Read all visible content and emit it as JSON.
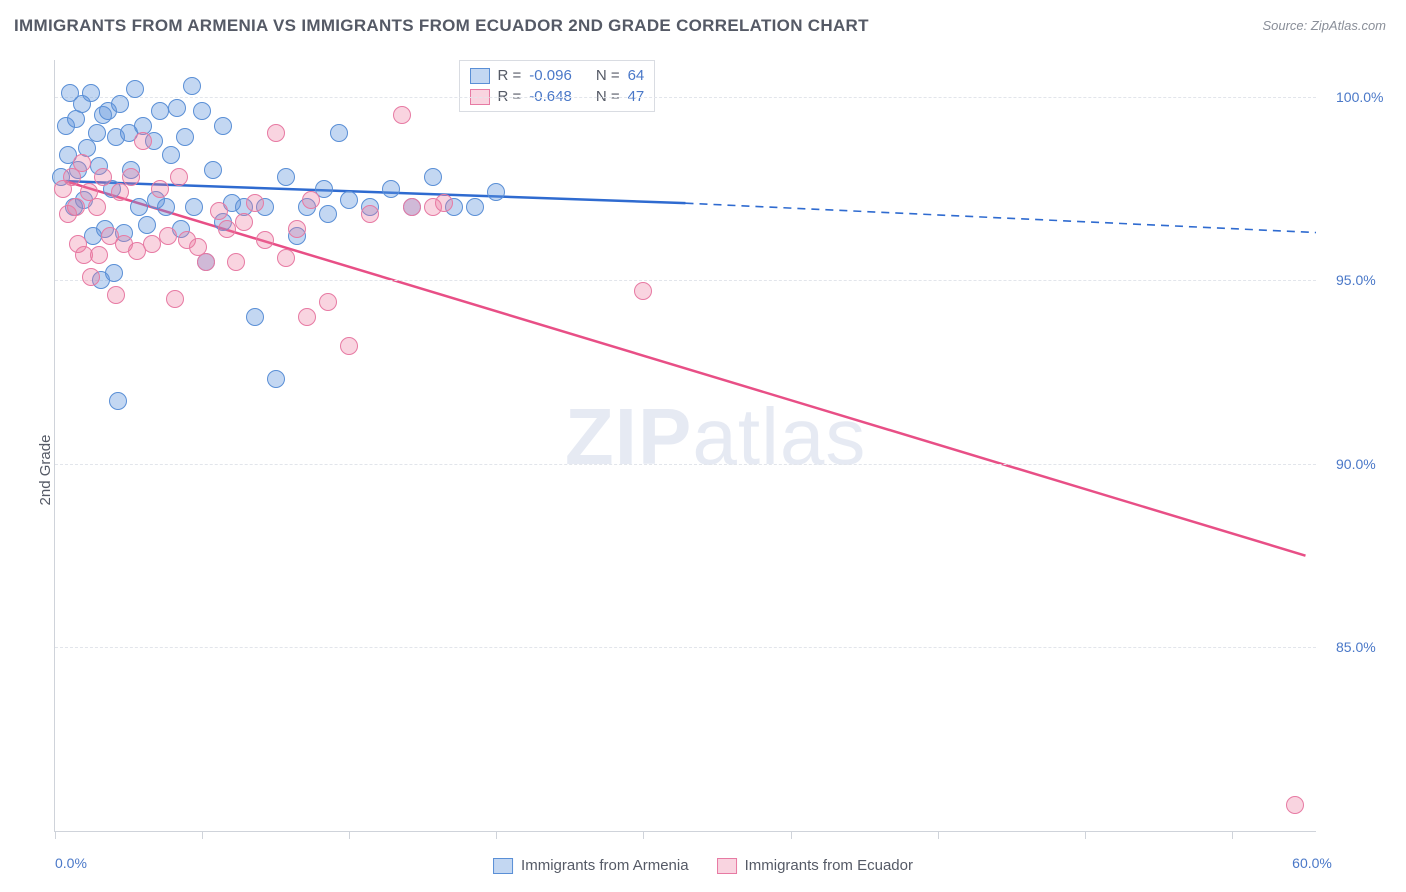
{
  "title": "IMMIGRANTS FROM ARMENIA VS IMMIGRANTS FROM ECUADOR 2ND GRADE CORRELATION CHART",
  "source": "Source: ZipAtlas.com",
  "watermark_bold": "ZIP",
  "watermark_rest": "atlas",
  "y_axis_label": "2nd Grade",
  "series": [
    {
      "name": "Immigrants from Armenia",
      "key": "armenia",
      "r_label": "R =",
      "r_value": "-0.096",
      "n_label": "N =",
      "n_value": "64",
      "fill": "rgba(96,150,220,0.38)",
      "stroke": "#5a8fd6",
      "line_color": "#2f6bd0",
      "line_width": 2.5,
      "regression_solid": {
        "x1": 0.5,
        "y1": 97.7,
        "x2": 30,
        "y2": 97.1
      },
      "regression_dashed": {
        "x1": 30,
        "y1": 97.1,
        "x2": 60,
        "y2": 96.3
      },
      "points": [
        [
          0.3,
          97.8
        ],
        [
          0.5,
          99.2
        ],
        [
          0.6,
          98.4
        ],
        [
          0.7,
          100.1
        ],
        [
          0.9,
          97.0
        ],
        [
          1.0,
          99.4
        ],
        [
          1.1,
          98.0
        ],
        [
          1.3,
          99.8
        ],
        [
          1.4,
          97.2
        ],
        [
          1.5,
          98.6
        ],
        [
          1.7,
          100.1
        ],
        [
          1.8,
          96.2
        ],
        [
          2.0,
          99.0
        ],
        [
          2.1,
          98.1
        ],
        [
          2.3,
          99.5
        ],
        [
          2.4,
          96.4
        ],
        [
          2.2,
          95.0
        ],
        [
          2.5,
          99.6
        ],
        [
          2.9,
          98.9
        ],
        [
          2.7,
          97.5
        ],
        [
          2.8,
          95.2
        ],
        [
          3.0,
          91.7
        ],
        [
          3.1,
          99.8
        ],
        [
          3.3,
          96.3
        ],
        [
          3.5,
          99.0
        ],
        [
          3.6,
          98.0
        ],
        [
          3.8,
          100.2
        ],
        [
          4.0,
          97.0
        ],
        [
          4.2,
          99.2
        ],
        [
          4.4,
          96.5
        ],
        [
          4.7,
          98.8
        ],
        [
          4.8,
          97.2
        ],
        [
          5.0,
          99.6
        ],
        [
          5.3,
          97.0
        ],
        [
          5.5,
          98.4
        ],
        [
          5.8,
          99.7
        ],
        [
          6.0,
          96.4
        ],
        [
          6.2,
          98.9
        ],
        [
          6.5,
          100.3
        ],
        [
          6.6,
          97.0
        ],
        [
          7.0,
          99.6
        ],
        [
          7.2,
          95.5
        ],
        [
          7.5,
          98.0
        ],
        [
          8.0,
          99.2
        ],
        [
          8.4,
          97.1
        ],
        [
          8.0,
          96.6
        ],
        [
          9.0,
          97.0
        ],
        [
          9.5,
          94.0
        ],
        [
          10.0,
          97.0
        ],
        [
          10.5,
          92.3
        ],
        [
          11.0,
          97.8
        ],
        [
          11.5,
          96.2
        ],
        [
          12.0,
          97.0
        ],
        [
          12.8,
          97.5
        ],
        [
          13.0,
          96.8
        ],
        [
          13.5,
          99.0
        ],
        [
          14.0,
          97.2
        ],
        [
          15.0,
          97.0
        ],
        [
          16.0,
          97.5
        ],
        [
          17.0,
          97.0
        ],
        [
          18.0,
          97.8
        ],
        [
          19.0,
          97.0
        ],
        [
          20.0,
          97.0
        ],
        [
          21.0,
          97.4
        ]
      ]
    },
    {
      "name": "Immigrants from Ecuador",
      "key": "ecuador",
      "r_label": "R =",
      "r_value": "-0.648",
      "n_label": "N =",
      "n_value": "47",
      "fill": "rgba(235,120,160,0.32)",
      "stroke": "#e77aa3",
      "line_color": "#e84f86",
      "line_width": 2.5,
      "regression_solid": {
        "x1": 0.5,
        "y1": 97.7,
        "x2": 59.5,
        "y2": 87.5
      },
      "points": [
        [
          0.4,
          97.5
        ],
        [
          0.6,
          96.8
        ],
        [
          0.8,
          97.8
        ],
        [
          1.0,
          97.0
        ],
        [
          1.1,
          96.0
        ],
        [
          1.3,
          98.2
        ],
        [
          1.4,
          95.7
        ],
        [
          1.6,
          97.4
        ],
        [
          1.7,
          95.1
        ],
        [
          2.0,
          97.0
        ],
        [
          2.1,
          95.7
        ],
        [
          2.3,
          97.8
        ],
        [
          2.6,
          96.2
        ],
        [
          2.9,
          94.6
        ],
        [
          3.1,
          97.4
        ],
        [
          3.3,
          96.0
        ],
        [
          3.6,
          97.8
        ],
        [
          3.9,
          95.8
        ],
        [
          4.2,
          98.8
        ],
        [
          4.6,
          96.0
        ],
        [
          5.0,
          97.5
        ],
        [
          5.4,
          96.2
        ],
        [
          5.7,
          94.5
        ],
        [
          5.9,
          97.8
        ],
        [
          6.3,
          96.1
        ],
        [
          6.8,
          95.9
        ],
        [
          7.2,
          95.5
        ],
        [
          7.8,
          96.9
        ],
        [
          8.2,
          96.4
        ],
        [
          8.6,
          95.5
        ],
        [
          9.0,
          96.6
        ],
        [
          9.5,
          97.1
        ],
        [
          10.5,
          99.0
        ],
        [
          10.0,
          96.1
        ],
        [
          11.0,
          95.6
        ],
        [
          11.5,
          96.4
        ],
        [
          12.2,
          97.2
        ],
        [
          12.0,
          94.0
        ],
        [
          13.0,
          94.4
        ],
        [
          14.0,
          93.2
        ],
        [
          15.0,
          96.8
        ],
        [
          16.5,
          99.5
        ],
        [
          17.0,
          97.0
        ],
        [
          18.0,
          97.0
        ],
        [
          18.5,
          97.1
        ],
        [
          28.0,
          94.7
        ],
        [
          59.0,
          80.7
        ]
      ]
    }
  ],
  "axes": {
    "xlim": [
      0,
      60
    ],
    "ylim": [
      80,
      101
    ],
    "y_ticks": [
      {
        "v": 85,
        "label": "85.0%"
      },
      {
        "v": 90,
        "label": "90.0%"
      },
      {
        "v": 95,
        "label": "95.0%"
      },
      {
        "v": 100,
        "label": "100.0%"
      }
    ],
    "x_tick_positions": [
      0,
      7,
      14,
      21,
      28,
      35,
      42,
      49,
      56
    ],
    "x_labels": [
      {
        "v": 0,
        "label": "0.0%"
      },
      {
        "v": 60,
        "label": "60.0%"
      }
    ]
  },
  "style": {
    "point_radius": 9,
    "background": "#ffffff",
    "grid_color": "#e2e5eb",
    "axis_color": "#cfd3da",
    "title_fontsize": 17,
    "tick_fontsize": 14,
    "tick_color": "#4a78c8"
  }
}
